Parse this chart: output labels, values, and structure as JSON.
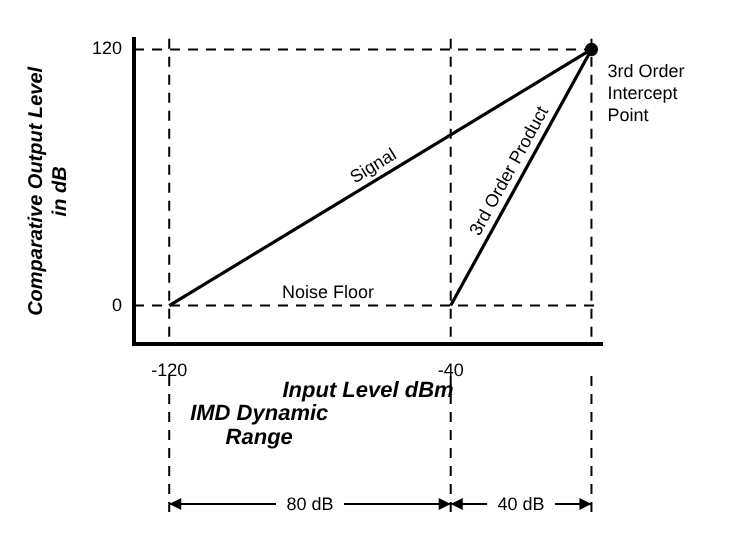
{
  "chart_data": {
    "type": "line",
    "xlabel": "Input Level dBm",
    "ylabel": "Comparative Output Level in dB",
    "xlim": [
      -130,
      3
    ],
    "ylim": [
      -18,
      125
    ],
    "xticks": [
      -120,
      -40
    ],
    "yticks": [
      0,
      120
    ],
    "series": [
      {
        "name": "Signal",
        "color": "#000000",
        "x": [
          -120,
          0
        ],
        "values": [
          0,
          120
        ]
      },
      {
        "name": "3rd Order Product",
        "color": "#000000",
        "x": [
          -40,
          0
        ],
        "values": [
          0,
          120
        ]
      },
      {
        "type": "scatter",
        "marker": "circle",
        "color": "#000000",
        "x": [
          0
        ],
        "values": [
          120
        ]
      }
    ],
    "marker": "none",
    "line_style": "solid",
    "legend": false,
    "grid": false,
    "ref_lines": [
      {
        "axis": "y",
        "value": 0,
        "label": "Noise Floor",
        "line_style": "dashed",
        "color": "#000000"
      },
      {
        "axis": "y",
        "value": 120,
        "line_style": "dashed",
        "color": "#000000"
      },
      {
        "axis": "x",
        "value": -120,
        "line_style": "dashed",
        "color": "#000000"
      },
      {
        "axis": "x",
        "value": -40,
        "line_style": "dashed",
        "color": "#000000"
      },
      {
        "axis": "x",
        "value": 0,
        "line_style": "dashed",
        "color": "#000000"
      }
    ],
    "annotations": [
      {
        "text": "3rd Order Intercept Point",
        "x": 0,
        "y": 120
      },
      "IMD Dynamic Range",
      "80 dB",
      "40 dB"
    ]
  }
}
